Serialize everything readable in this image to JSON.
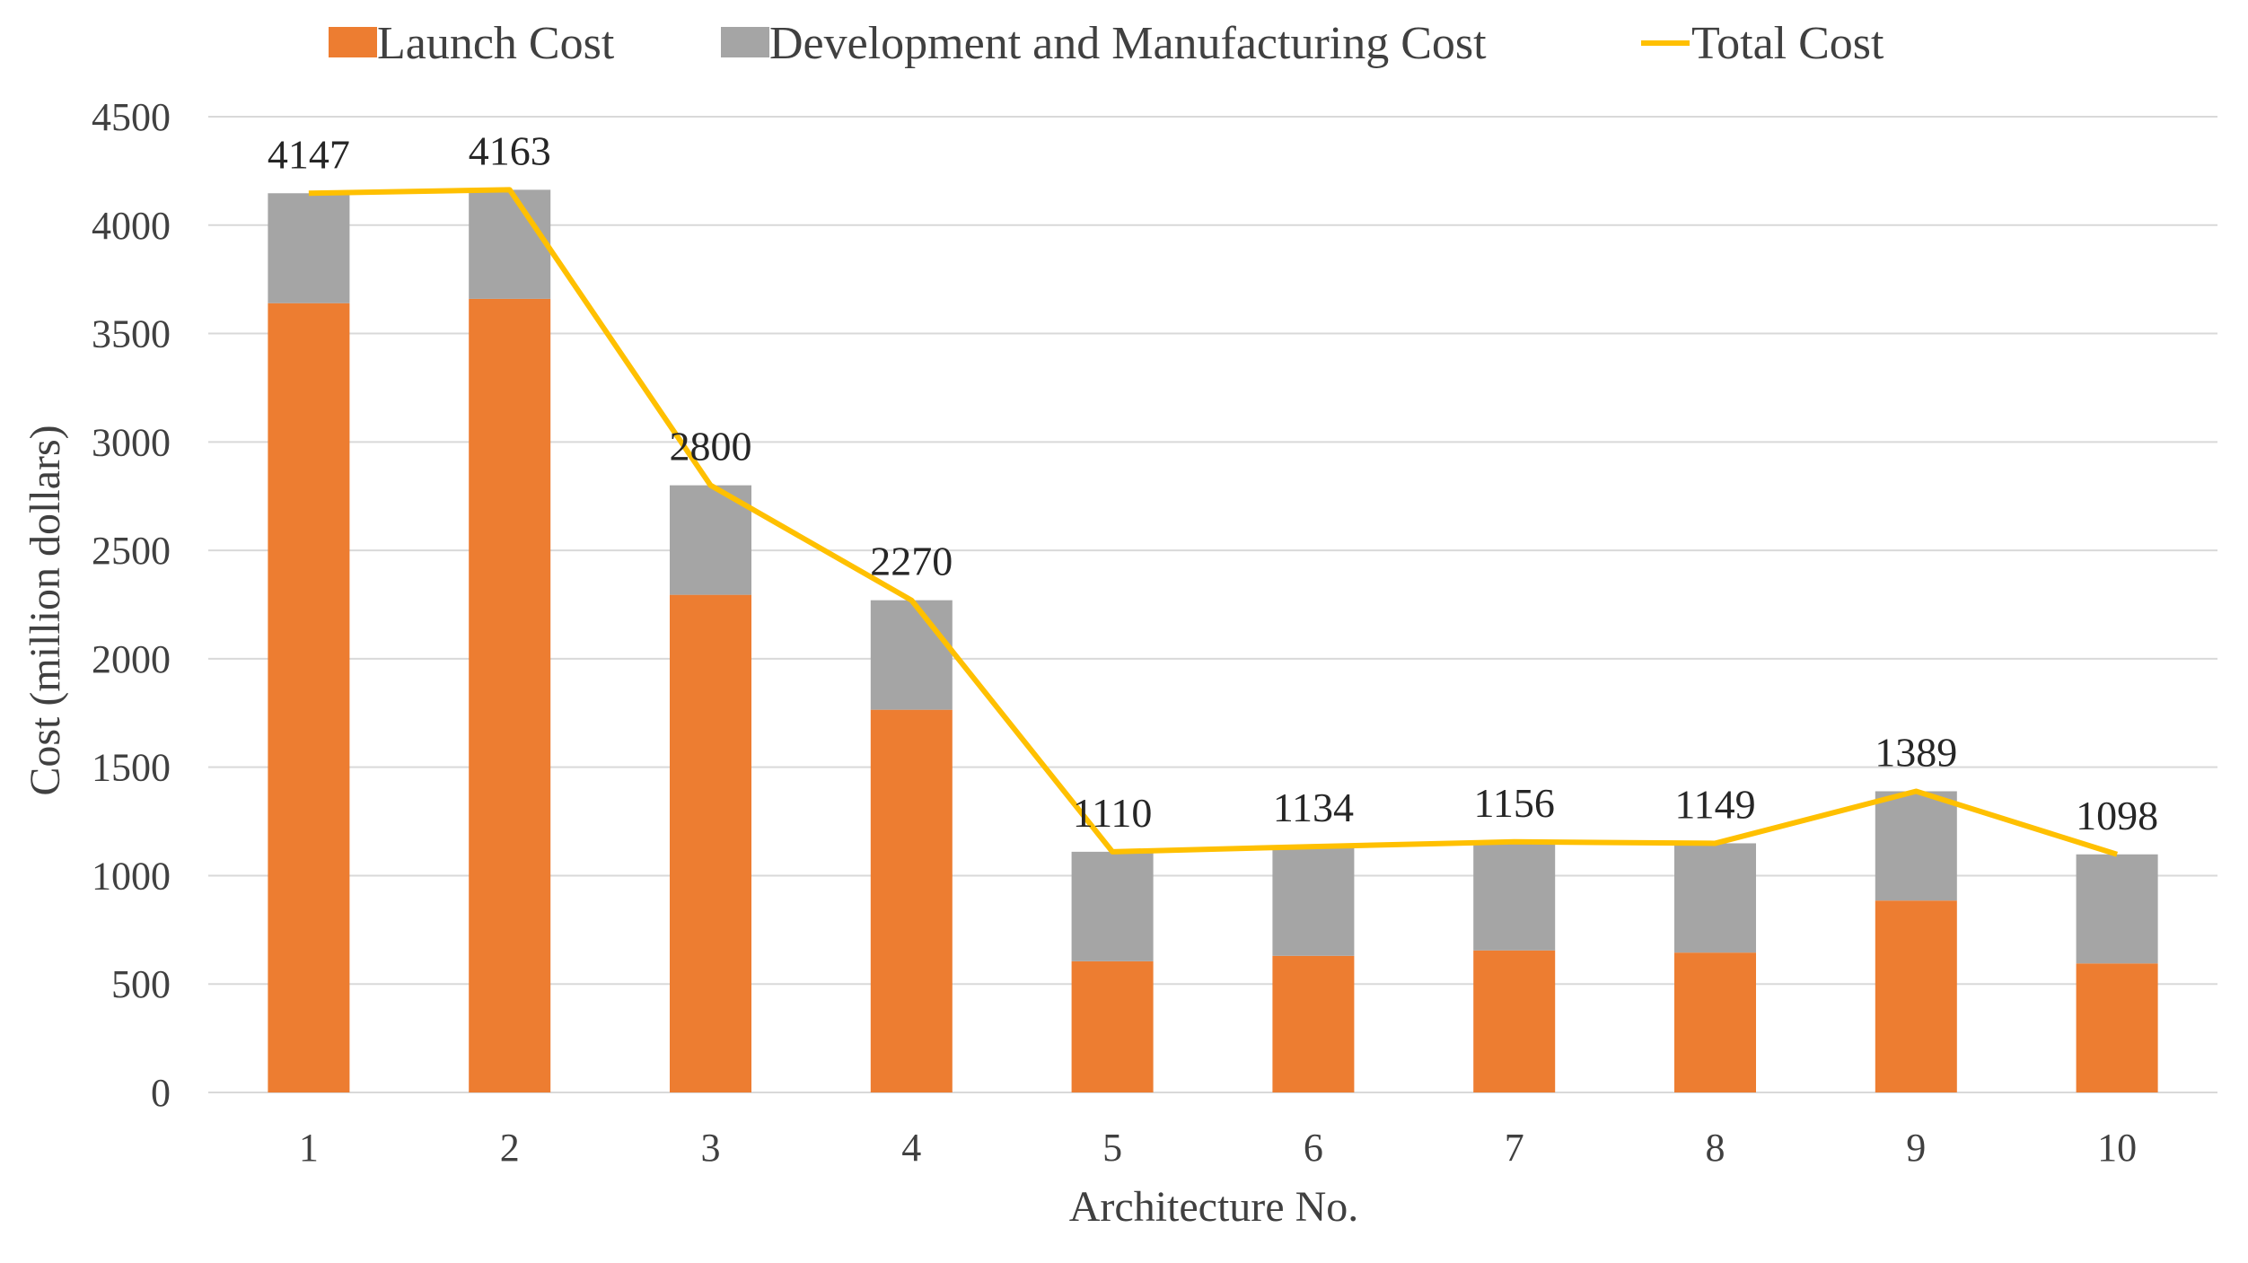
{
  "chart_data": {
    "type": "bar",
    "stacked": true,
    "categories": [
      "1",
      "2",
      "3",
      "4",
      "5",
      "6",
      "7",
      "8",
      "9",
      "10"
    ],
    "series": [
      {
        "name": "Launch Cost",
        "type": "bar",
        "color": "#ED7D31",
        "values": [
          3640,
          3660,
          2295,
          1765,
          605,
          630,
          655,
          645,
          885,
          595
        ]
      },
      {
        "name": "Development and Manufacturing Cost",
        "type": "bar",
        "color": "#A5A5A5",
        "values": [
          507,
          503,
          505,
          505,
          505,
          504,
          501,
          504,
          504,
          503
        ]
      },
      {
        "name": "Total Cost",
        "type": "line",
        "color": "#FFC000",
        "values": [
          4147,
          4163,
          2800,
          2270,
          1110,
          1134,
          1156,
          1149,
          1389,
          1098
        ]
      }
    ],
    "data_labels": [
      "4147",
      "4163",
      "2800",
      "2270",
      "1110",
      "1134",
      "1156",
      "1149",
      "1389",
      "1098"
    ],
    "title": "",
    "xlabel": "Architecture No.",
    "ylabel": "Cost (million dollars)",
    "ylim": [
      0,
      4500
    ],
    "yticks": [
      "0",
      "500",
      "1000",
      "1500",
      "2000",
      "2500",
      "3000",
      "3500",
      "4000",
      "4500"
    ],
    "grid": true,
    "legend_position": "top"
  }
}
